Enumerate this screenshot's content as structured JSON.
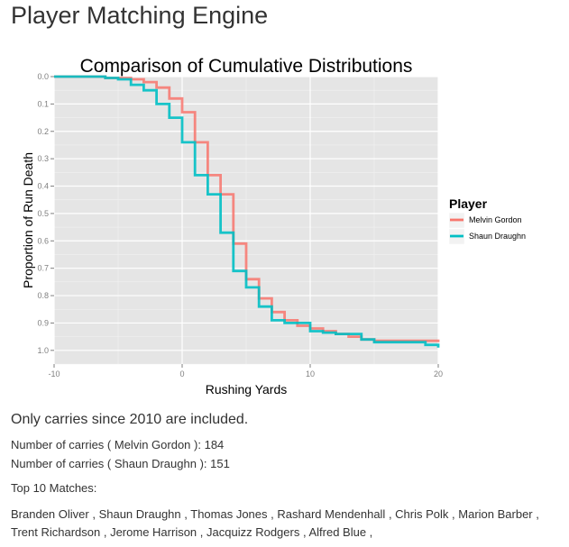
{
  "page": {
    "title": "Player Matching Engine",
    "note": "Only carries since 2010 are included.",
    "carries": [
      {
        "prefix": "Number of carries ( ",
        "player": "Melvin Gordon",
        "suffix": " ): ",
        "count": "184"
      },
      {
        "prefix": "Number of carries ( ",
        "player": "Shaun Draughn",
        "suffix": " ): ",
        "count": "151"
      }
    ],
    "matches_label": "Top 10 Matches:",
    "matches": [
      "Branden Oliver",
      "Shaun Draughn",
      "Thomas Jones",
      "Rashard Mendenhall",
      "Chris Polk",
      "Marion Barber",
      "Trent Richardson",
      "Jerome Harrison",
      "Jacquizz Rodgers",
      "Alfred Blue"
    ]
  },
  "chart_data": {
    "type": "line",
    "step": true,
    "title": "Comparison of Cumulative Distributions",
    "xlabel": "Rushing Yards",
    "ylabel": "Proportion of Run Death",
    "xlim": [
      -10,
      20
    ],
    "ylim": [
      0,
      1.05
    ],
    "y_reversed": true,
    "xticks": [
      -10,
      0,
      10,
      20
    ],
    "yticks": [
      0.0,
      0.1,
      0.2,
      0.3,
      0.4,
      0.5,
      0.6,
      0.7,
      0.8,
      0.9,
      1.0
    ],
    "ytick_labels": [
      "0.0",
      "0.1",
      "0.2",
      "0.3",
      "0.4",
      "0.5",
      "0.6",
      "0.7",
      "0.8",
      "0.9",
      "1.0"
    ],
    "grid": true,
    "legend_title": "Player",
    "legend_position": "right",
    "series": [
      {
        "name": "Melvin Gordon",
        "color": "#F8766D",
        "x": [
          -10,
          -6,
          -4,
          -3,
          -2,
          -1,
          0,
          1,
          2,
          3,
          4,
          5,
          6,
          7,
          8,
          9,
          10,
          11,
          12,
          13,
          14,
          15,
          20
        ],
        "y": [
          0.0,
          0.005,
          0.01,
          0.02,
          0.04,
          0.08,
          0.13,
          0.24,
          0.36,
          0.43,
          0.61,
          0.74,
          0.81,
          0.86,
          0.89,
          0.91,
          0.92,
          0.93,
          0.94,
          0.95,
          0.96,
          0.965,
          0.97
        ]
      },
      {
        "name": "Shaun Draughn",
        "color": "#00BFC4",
        "x": [
          -10,
          -9,
          -6,
          -5,
          -4,
          -3,
          -2,
          -1,
          0,
          1,
          2,
          3,
          4,
          5,
          6,
          7,
          8,
          10,
          11,
          12,
          14,
          15,
          19,
          20
        ],
        "y": [
          0.0,
          0.0,
          0.005,
          0.01,
          0.03,
          0.05,
          0.1,
          0.15,
          0.24,
          0.36,
          0.43,
          0.57,
          0.71,
          0.77,
          0.84,
          0.89,
          0.9,
          0.93,
          0.935,
          0.94,
          0.96,
          0.97,
          0.98,
          0.99
        ]
      }
    ]
  }
}
